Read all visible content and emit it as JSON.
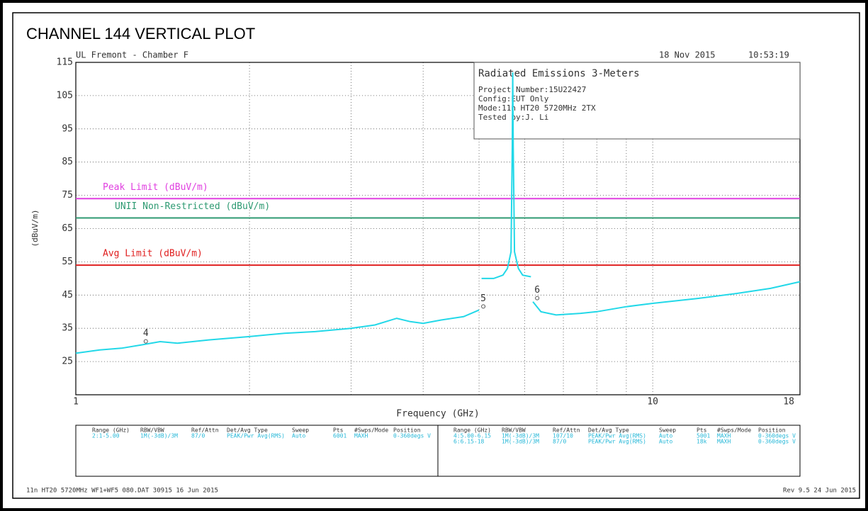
{
  "chart_data": {
    "type": "line",
    "title": "CHANNEL 144 VERTICAL PLOT",
    "header_left": "UL Fremont - Chamber F",
    "header_date": "18 Nov 2015",
    "header_time": "10:53:19",
    "info_box": [
      "Radiated Emissions 3-Meters",
      "Project Number:15U22427",
      "Config:EUT Only",
      "Mode:11n HT20 5720MHz 2TX",
      "Tested by:J. Li"
    ],
    "x_label": "Frequency (GHz)",
    "y_label": "(dBuV/m)",
    "xlog": true,
    "xlim": [
      1,
      18
    ],
    "xticks": [
      1,
      10,
      18
    ],
    "xgrid": [
      2,
      3,
      4,
      5,
      6,
      7,
      8,
      9
    ],
    "ylim": [
      15,
      115
    ],
    "yticks": [
      25,
      35,
      45,
      55,
      65,
      75,
      85,
      95,
      105,
      115
    ],
    "grid": true,
    "limits": [
      {
        "name": "Peak Limit (dBuV/m)",
        "value": 74,
        "color": "#e040e0"
      },
      {
        "name": "UNII Non-Restricted (dBuV/m)",
        "value": 68.2,
        "color": "#2e9a72"
      },
      {
        "name": "Avg Limit (dBuV/m)",
        "value": 54,
        "color": "#e02020"
      }
    ],
    "series": [
      {
        "name": "Trace",
        "color": "#22d8e8",
        "x": [
          1.0,
          1.1,
          1.2,
          1.3,
          1.4,
          1.5,
          1.7,
          2.0,
          2.3,
          2.6,
          3.0,
          3.3,
          3.6,
          3.8,
          4.0,
          4.3,
          4.7,
          5.0,
          5.02,
          5.05,
          5.3,
          5.5,
          5.6,
          5.68,
          5.71,
          5.72,
          5.73,
          5.76,
          5.85,
          5.95,
          6.15,
          6.17,
          6.2,
          6.4,
          6.8,
          7.5,
          8.0,
          9.0,
          10,
          12,
          14,
          16,
          18
        ],
        "values": [
          27.5,
          28.5,
          29,
          30,
          31,
          30.5,
          31.5,
          32.5,
          33.5,
          34,
          35,
          36,
          38,
          37,
          36.5,
          37.5,
          38.5,
          40.5,
          null,
          50,
          50,
          51,
          53,
          58,
          90,
          112,
          90,
          58,
          53,
          51,
          50.5,
          null,
          43,
          40,
          39,
          39.5,
          40,
          41.5,
          42.5,
          44,
          45.5,
          47,
          49
        ]
      }
    ],
    "markers": [
      {
        "label": "4",
        "x": 1.3,
        "y": 30
      },
      {
        "label": "5",
        "x": 5.0,
        "y": 40.5
      },
      {
        "label": "6",
        "x": 6.2,
        "y": 43
      }
    ],
    "settings_table": {
      "headers": [
        "Range (GHz)",
        "RBW/VBW",
        "Ref/Attn",
        "Det/Avg Type",
        "Sweep",
        "Pts",
        "#Swps/Mode",
        "Position"
      ],
      "left_rows": [
        [
          "2:1-5.00",
          "1M(-3dB)/3M",
          "87/0",
          "PEAK/Pwr Avg(RMS)",
          "Auto",
          "6001",
          "MAXH",
          "0-360degs V"
        ]
      ],
      "right_rows": [
        [
          "4:5.00-6.15",
          "1M(-3dB)/3M",
          "107/10",
          "PEAK/Pwr Avg(RMS)",
          "Auto",
          "5001",
          "MAXH",
          "0-360degs V"
        ],
        [
          "6:6.15-18",
          "1M(-3dB)/3M",
          "87/0",
          "PEAK/Pwr Avg(RMS)",
          "Auto",
          "18k",
          "MAXH",
          "0-360degs V"
        ]
      ]
    },
    "footer_left": "11n HT20 5720MHz WF1+WF5 080.DAT 30915 16 Jun 2015",
    "footer_right": "Rev 9.5 24 Jun 2015"
  }
}
